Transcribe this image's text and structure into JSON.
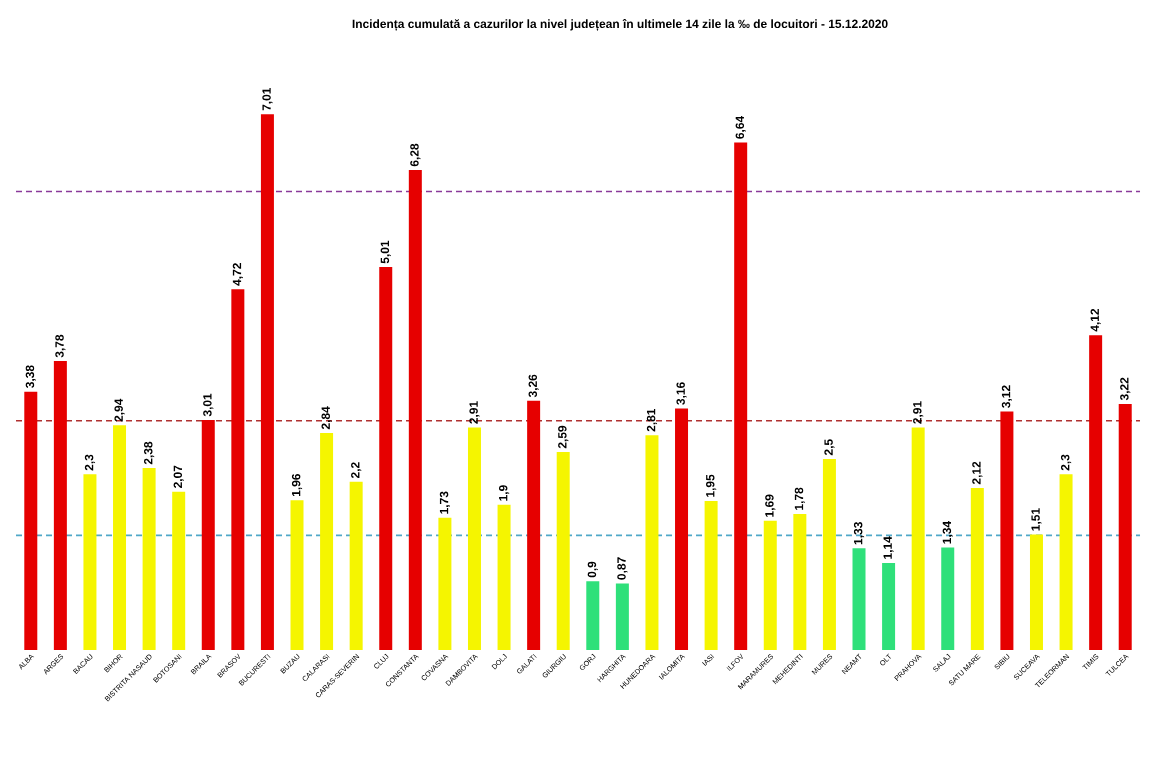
{
  "chart_data": {
    "type": "bar",
    "title": "Incidența cumulată a cazurilor la nivel județean în ultimele 14 zile   la ‰ de locuitori  - 15.12.2020",
    "categories": [
      "ALBA",
      "ARGES",
      "BACAU",
      "BIHOR",
      "BISTRITA NASAUD",
      "BOTOSANI",
      "BRAILA",
      "BRASOV",
      "BUCURESTI",
      "BUZAU",
      "CALARASI",
      "CARAS-SEVERIN",
      "CLUJ",
      "CONSTANTA",
      "COVASNA",
      "DAMBOVITA",
      "DOLJ",
      "GALATI",
      "GIURGIU",
      "GORJ",
      "HARGHITA",
      "HUNEDOARA",
      "IALOMITA",
      "IASI",
      "ILFOV",
      "MARAMURES",
      "MEHEDINTI",
      "MURES",
      "NEAMT",
      "OLT",
      "PRAHOVA",
      "SALAJ",
      "SATU MARE",
      "SIBIU",
      "SUCEAVA",
      "TELEORMAN",
      "TIMIS",
      "TULCEA"
    ],
    "values": [
      3.38,
      3.78,
      2.3,
      2.94,
      2.38,
      2.07,
      3.01,
      4.72,
      7.01,
      1.96,
      2.84,
      2.2,
      5.01,
      6.28,
      1.73,
      2.91,
      1.9,
      3.26,
      2.59,
      0.9,
      0.87,
      2.81,
      3.16,
      1.95,
      6.64,
      1.69,
      1.78,
      2.5,
      1.33,
      1.14,
      2.91,
      1.34,
      2.12,
      3.12,
      1.51,
      2.3,
      4.12,
      3.22
    ],
    "value_labels": [
      "3,38",
      "3,78",
      "2,3",
      "2,94",
      "2,38",
      "2,07",
      "3,01",
      "4,72",
      "7,01",
      "1,96",
      "2,84",
      "2,2",
      "5,01",
      "6,28",
      "1,73",
      "2,91",
      "1,9",
      "3,26",
      "2,59",
      "0,9",
      "0,87",
      "2,81",
      "3,16",
      "1,95",
      "6,64",
      "1,69",
      "1,78",
      "2,5",
      "1,33",
      "1,14",
      "2,91",
      "1,34",
      "2,12",
      "3,12",
      "1,51",
      "2,3",
      "4,12",
      "3,22"
    ],
    "colors": [
      "#e60000",
      "#e60000",
      "#f5f500",
      "#f5f500",
      "#f5f500",
      "#f5f500",
      "#e60000",
      "#e60000",
      "#e60000",
      "#f5f500",
      "#f5f500",
      "#f5f500",
      "#e60000",
      "#e60000",
      "#f5f500",
      "#f5f500",
      "#f5f500",
      "#e60000",
      "#f5f500",
      "#2ee07a",
      "#2ee07a",
      "#f5f500",
      "#e60000",
      "#f5f500",
      "#e60000",
      "#f5f500",
      "#f5f500",
      "#f5f500",
      "#2ee07a",
      "#2ee07a",
      "#f5f500",
      "#2ee07a",
      "#f5f500",
      "#e60000",
      "#f5f500",
      "#f5f500",
      "#e60000",
      "#e60000"
    ],
    "ref_lines": [
      {
        "axis": "y",
        "value": 1.5,
        "color": "#4fa8c8",
        "line_style": "dashed"
      },
      {
        "axis": "y",
        "value": 3,
        "color": "#b03030",
        "line_style": "dashed"
      },
      {
        "axis": "y",
        "value": 6,
        "color": "#8a3a9a",
        "line_style": "dashed"
      }
    ],
    "grid": false
  }
}
